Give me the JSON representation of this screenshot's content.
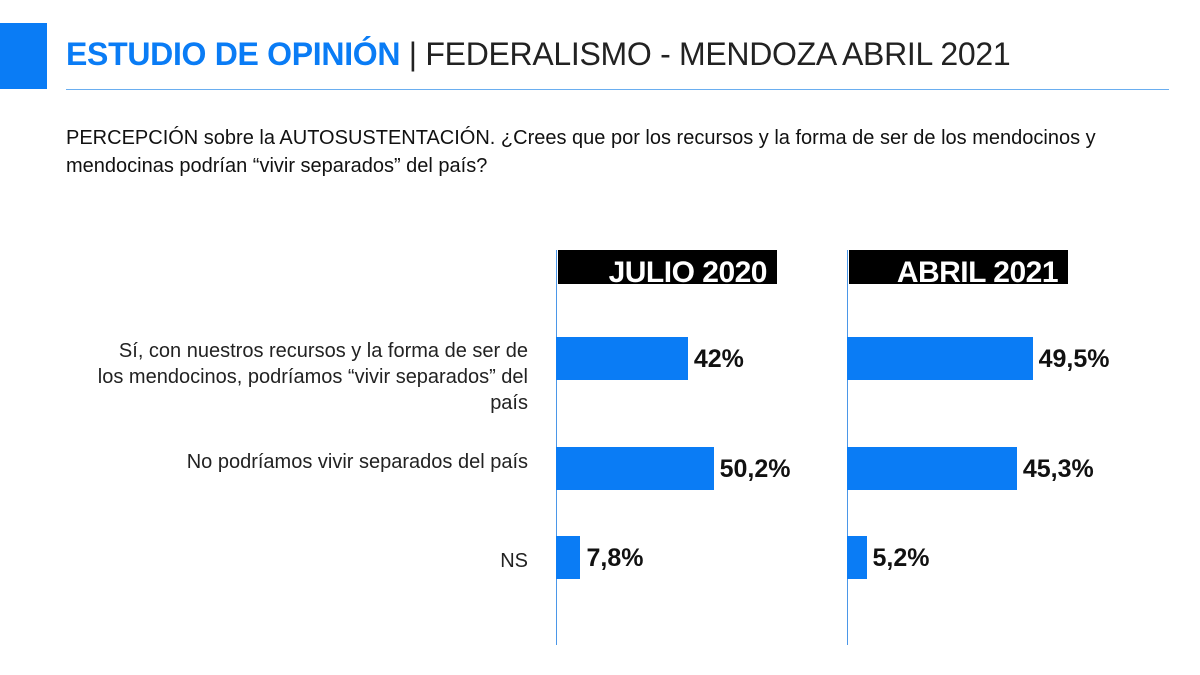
{
  "header": {
    "brand": "ESTUDIO DE OPINIÓN",
    "separator": "|",
    "subtitle": "FEDERALISMO - MENDOZA ABRIL 2021"
  },
  "question": "PERCEPCIÓN sobre la AUTOSUSTENTACIÓN. ¿Crees que por los recursos y la forma de ser de los mendocinos y mendocinas podrían “vivir separados” del país?",
  "colors": {
    "accent": "#0a7cf5",
    "bar": "#0a7cf5",
    "panel_header": "#000000"
  },
  "chart_data": {
    "type": "bar",
    "orientation": "horizontal",
    "categories": [
      "Sí, con nuestros recursos y la forma de ser de los mendocinos, podríamos “vivir separados” del país",
      "No podríamos vivir separados del país",
      "NS"
    ],
    "series": [
      {
        "name": "JULIO 2020",
        "values": [
          42,
          50.2,
          7.8
        ],
        "labels": [
          "42%",
          "50,2%",
          "7,8%"
        ]
      },
      {
        "name": "ABRIL 2021",
        "values": [
          49.5,
          45.3,
          5.2
        ],
        "labels": [
          "49,5%",
          "45,3%",
          "5,2%"
        ]
      }
    ]
  }
}
